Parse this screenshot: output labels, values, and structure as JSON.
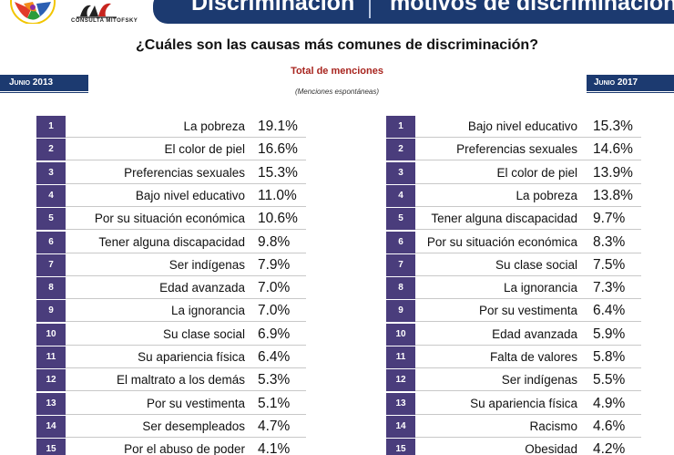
{
  "header": {
    "title_left": "Discriminación",
    "title_right": "motivos de discriminación",
    "logo_text": "CONSULTA MITOFSKY"
  },
  "question": "¿Cuáles son las causas más comunes de discriminación?",
  "subtitle": "Total de menciones",
  "note": "(Menciones espontáneas)",
  "left_table": {
    "period": "Junio 2013",
    "rows": [
      {
        "rank": "1",
        "label": "La pobreza",
        "value": "19.1%"
      },
      {
        "rank": "2",
        "label": "El color de piel",
        "value": "16.6%"
      },
      {
        "rank": "3",
        "label": "Preferencias sexuales",
        "value": "15.3%"
      },
      {
        "rank": "4",
        "label": "Bajo nivel educativo",
        "value": "11.0%"
      },
      {
        "rank": "5",
        "label": "Por su situación económica",
        "value": "10.6%"
      },
      {
        "rank": "6",
        "label": "Tener alguna discapacidad",
        "value": "9.8%"
      },
      {
        "rank": "7",
        "label": "Ser indígenas",
        "value": "7.9%"
      },
      {
        "rank": "8",
        "label": "Edad avanzada",
        "value": "7.0%"
      },
      {
        "rank": "9",
        "label": "La ignorancia",
        "value": "7.0%"
      },
      {
        "rank": "10",
        "label": "Su clase social",
        "value": "6.9%"
      },
      {
        "rank": "11",
        "label": "Su apariencia física",
        "value": "6.4%"
      },
      {
        "rank": "12",
        "label": "El maltrato a los demás",
        "value": "5.3%"
      },
      {
        "rank": "13",
        "label": "Por su vestimenta",
        "value": "5.1%"
      },
      {
        "rank": "14",
        "label": "Ser desempleados",
        "value": "4.7%"
      },
      {
        "rank": "15",
        "label": "Por el abuso de poder",
        "value": "4.1%"
      }
    ]
  },
  "right_table": {
    "period": "Junio 2017",
    "rows": [
      {
        "rank": "1",
        "label": "Bajo nivel educativo",
        "value": "15.3%"
      },
      {
        "rank": "2",
        "label": "Preferencias sexuales",
        "value": "14.6%"
      },
      {
        "rank": "3",
        "label": "El color de piel",
        "value": "13.9%"
      },
      {
        "rank": "4",
        "label": "La pobreza",
        "value": "13.8%"
      },
      {
        "rank": "5",
        "label": "Tener alguna discapacidad",
        "value": "9.7%"
      },
      {
        "rank": "6",
        "label": "Por su situación económica",
        "value": "8.3%"
      },
      {
        "rank": "7",
        "label": "Su clase social",
        "value": "7.5%"
      },
      {
        "rank": "8",
        "label": "La ignorancia",
        "value": "7.3%"
      },
      {
        "rank": "9",
        "label": "Por su vestimenta",
        "value": "6.4%"
      },
      {
        "rank": "10",
        "label": "Edad avanzada",
        "value": "5.9%"
      },
      {
        "rank": "11",
        "label": "Falta de valores",
        "value": "5.8%"
      },
      {
        "rank": "12",
        "label": "Ser indígenas",
        "value": "5.5%"
      },
      {
        "rank": "13",
        "label": "Su apariencia física",
        "value": "4.9%"
      },
      {
        "rank": "14",
        "label": "Racismo",
        "value": "4.6%"
      },
      {
        "rank": "15",
        "label": "Obesidad",
        "value": "4.2%"
      }
    ]
  },
  "colors": {
    "banner": "#1c3a70",
    "rank_cell": "#4a3d7c",
    "subtitle": "#a8251f"
  }
}
